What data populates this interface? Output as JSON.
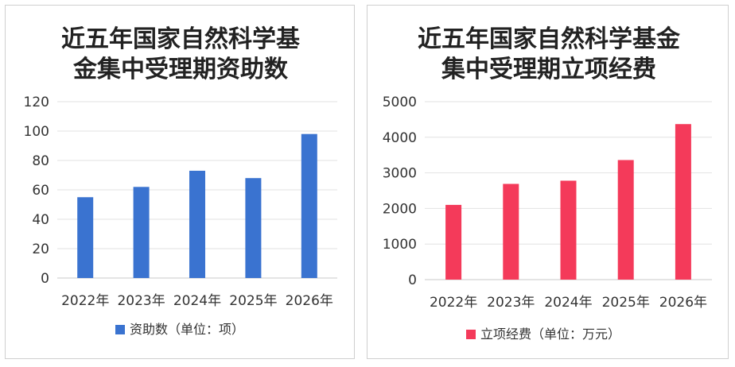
{
  "chart_data": [
    {
      "type": "bar",
      "title_line1": "近五年国家自然科学基",
      "title_line2": "金集中受理期资助数",
      "categories": [
        "2022年",
        "2023年",
        "2024年",
        "2025年",
        "2026年"
      ],
      "series": [
        {
          "name": "资助数（单位：项）",
          "values": [
            55,
            62,
            73,
            68,
            98
          ]
        }
      ],
      "ylim": [
        0,
        120
      ],
      "yticks": [
        "0",
        "20",
        "40",
        "60",
        "80",
        "100",
        "120"
      ],
      "grid": true,
      "legend": "bottom",
      "color": "#3A73D0"
    },
    {
      "type": "bar",
      "title_line1": "近五年国家自然科学基金",
      "title_line2": "集中受理期立项经费",
      "categories": [
        "2022年",
        "2023年",
        "2024年",
        "2025年",
        "2026年"
      ],
      "series": [
        {
          "name": "立项经费（单位：万元）",
          "values": [
            2100,
            2690,
            2780,
            3360,
            4370
          ]
        }
      ],
      "ylim": [
        0,
        5000
      ],
      "yticks": [
        "0",
        "1000",
        "2000",
        "3000",
        "4000",
        "5000"
      ],
      "grid": true,
      "legend": "bottom",
      "color": "#F43A5A"
    }
  ]
}
